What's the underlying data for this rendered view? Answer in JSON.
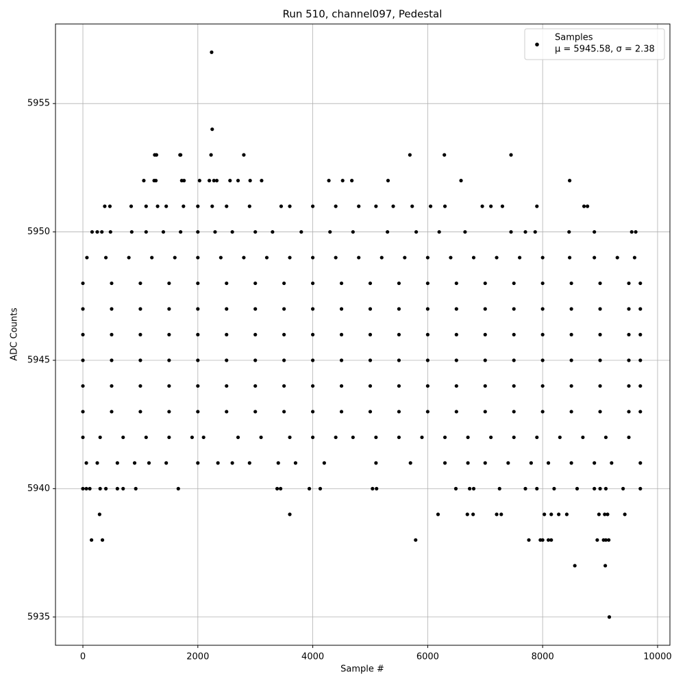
{
  "chart_data": {
    "type": "scatter",
    "title": "Run 510, channel097, Pedestal",
    "xlabel": "Sample #",
    "ylabel": "ADC Counts",
    "xlim": [
      -477,
      10215
    ],
    "ylim": [
      5933.9,
      5958.1
    ],
    "xticks": [
      0,
      2000,
      4000,
      6000,
      8000,
      10000
    ],
    "yticks": [
      5935,
      5940,
      5945,
      5950,
      5955
    ],
    "grid": true,
    "legend": "upper right",
    "legend_subtitle": "μ = 5945.58, σ = 2.38",
    "series": [
      {
        "name": "Samples",
        "color": "#000000",
        "x": [
          2240,
          2250,
          1250,
          1280,
          1690,
          1700,
          2230,
          2800,
          5690,
          6290,
          7450,
          1060,
          1240,
          1270,
          1720,
          1760,
          2030,
          2200,
          2280,
          2330,
          2560,
          2700,
          2910,
          3110,
          4280,
          4520,
          4680,
          5310,
          6580,
          8470,
          380,
          470,
          840,
          1100,
          1300,
          1450,
          1750,
          2000,
          2250,
          2500,
          2900,
          3450,
          3600,
          4000,
          4400,
          4800,
          5100,
          5400,
          5730,
          6050,
          6300,
          6950,
          7100,
          7300,
          7900,
          8720,
          8780,
          160,
          250,
          330,
          480,
          850,
          1100,
          1400,
          1700,
          2000,
          2300,
          2600,
          3000,
          3300,
          3800,
          4300,
          4700,
          5300,
          5800,
          6200,
          6650,
          7450,
          7700,
          7870,
          8460,
          8900,
          9550,
          9620,
          70,
          400,
          800,
          1200,
          1600,
          2000,
          2400,
          2800,
          3200,
          3600,
          4000,
          4400,
          4800,
          5200,
          5600,
          6000,
          6400,
          6800,
          7200,
          7600,
          8000,
          8470,
          8900,
          9300,
          9600,
          0,
          500,
          1000,
          1500,
          2000,
          2500,
          3000,
          3500,
          4000,
          4500,
          5000,
          5500,
          6000,
          6500,
          7000,
          7500,
          8000,
          8500,
          9000,
          9500,
          9700,
          0,
          500,
          1000,
          1500,
          2000,
          2500,
          3000,
          3500,
          4000,
          4500,
          5000,
          5500,
          6000,
          6500,
          7000,
          7500,
          8000,
          8500,
          9000,
          9500,
          9700,
          0,
          500,
          1000,
          1500,
          2000,
          2500,
          3000,
          3500,
          4000,
          4500,
          5000,
          5500,
          6000,
          6500,
          7000,
          7500,
          8000,
          8500,
          9000,
          9500,
          9700,
          0,
          500,
          1000,
          1500,
          2000,
          2500,
          3000,
          3500,
          4000,
          4500,
          5000,
          5500,
          6000,
          6500,
          7000,
          7500,
          8000,
          8500,
          9000,
          9500,
          9700,
          0,
          500,
          1000,
          1500,
          2000,
          2500,
          3000,
          3500,
          4000,
          4500,
          5000,
          5500,
          6000,
          6500,
          7000,
          7500,
          8000,
          8500,
          9000,
          9500,
          9700,
          0,
          500,
          1000,
          1500,
          2000,
          2500,
          3000,
          3500,
          4000,
          4500,
          5000,
          5500,
          6000,
          6500,
          7000,
          7500,
          8000,
          8500,
          9000,
          9500,
          9700,
          0,
          300,
          700,
          1100,
          1500,
          1900,
          2100,
          2700,
          3100,
          3600,
          4000,
          4400,
          4700,
          5100,
          5500,
          5900,
          6300,
          6700,
          7100,
          7500,
          7900,
          8300,
          8700,
          9100,
          9500,
          60,
          250,
          600,
          900,
          1150,
          1450,
          2000,
          2350,
          2600,
          2900,
          3400,
          3700,
          4200,
          5100,
          5700,
          6300,
          6700,
          7000,
          7400,
          7800,
          8100,
          8500,
          8900,
          9200,
          9700,
          0,
          60,
          120,
          300,
          400,
          600,
          700,
          920,
          1660,
          3380,
          3440,
          3940,
          4130,
          5040,
          5110,
          6490,
          6730,
          6800,
          7250,
          7700,
          7900,
          8200,
          8600,
          8900,
          9000,
          9100,
          9400,
          9700,
          290,
          3600,
          6180,
          6690,
          6790,
          7200,
          7280,
          8030,
          8150,
          8280,
          8420,
          8980,
          9080,
          9130,
          9430,
          150,
          340,
          5790,
          7760,
          7960,
          8000,
          8100,
          8150,
          8950,
          9060,
          9100,
          9150,
          8560,
          9090,
          9160
        ],
        "values": [
          5957,
          5954,
          5953,
          5953,
          5953,
          5953,
          5953,
          5953,
          5953,
          5953,
          5953,
          5952,
          5952,
          5952,
          5952,
          5952,
          5952,
          5952,
          5952,
          5952,
          5952,
          5952,
          5952,
          5952,
          5952,
          5952,
          5952,
          5952,
          5952,
          5952,
          5951,
          5951,
          5951,
          5951,
          5951,
          5951,
          5951,
          5951,
          5951,
          5951,
          5951,
          5951,
          5951,
          5951,
          5951,
          5951,
          5951,
          5951,
          5951,
          5951,
          5951,
          5951,
          5951,
          5951,
          5951,
          5951,
          5951,
          5950,
          5950,
          5950,
          5950,
          5950,
          5950,
          5950,
          5950,
          5950,
          5950,
          5950,
          5950,
          5950,
          5950,
          5950,
          5950,
          5950,
          5950,
          5950,
          5950,
          5950,
          5950,
          5950,
          5950,
          5950,
          5950,
          5950,
          5949,
          5949,
          5949,
          5949,
          5949,
          5949,
          5949,
          5949,
          5949,
          5949,
          5949,
          5949,
          5949,
          5949,
          5949,
          5949,
          5949,
          5949,
          5949,
          5949,
          5949,
          5949,
          5949,
          5949,
          5949,
          5948,
          5948,
          5948,
          5948,
          5948,
          5948,
          5948,
          5948,
          5948,
          5948,
          5948,
          5948,
          5948,
          5948,
          5948,
          5948,
          5948,
          5948,
          5948,
          5948,
          5948,
          5947,
          5947,
          5947,
          5947,
          5947,
          5947,
          5947,
          5947,
          5947,
          5947,
          5947,
          5947,
          5947,
          5947,
          5947,
          5947,
          5947,
          5947,
          5947,
          5947,
          5947,
          5946,
          5946,
          5946,
          5946,
          5946,
          5946,
          5946,
          5946,
          5946,
          5946,
          5946,
          5946,
          5946,
          5946,
          5946,
          5946,
          5946,
          5946,
          5946,
          5946,
          5946,
          5945,
          5945,
          5945,
          5945,
          5945,
          5945,
          5945,
          5945,
          5945,
          5945,
          5945,
          5945,
          5945,
          5945,
          5945,
          5945,
          5945,
          5945,
          5945,
          5945,
          5945,
          5944,
          5944,
          5944,
          5944,
          5944,
          5944,
          5944,
          5944,
          5944,
          5944,
          5944,
          5944,
          5944,
          5944,
          5944,
          5944,
          5944,
          5944,
          5944,
          5944,
          5944,
          5943,
          5943,
          5943,
          5943,
          5943,
          5943,
          5943,
          5943,
          5943,
          5943,
          5943,
          5943,
          5943,
          5943,
          5943,
          5943,
          5943,
          5943,
          5943,
          5943,
          5943,
          5942,
          5942,
          5942,
          5942,
          5942,
          5942,
          5942,
          5942,
          5942,
          5942,
          5942,
          5942,
          5942,
          5942,
          5942,
          5942,
          5942,
          5942,
          5942,
          5942,
          5942,
          5942,
          5942,
          5942,
          5942,
          5941,
          5941,
          5941,
          5941,
          5941,
          5941,
          5941,
          5941,
          5941,
          5941,
          5941,
          5941,
          5941,
          5941,
          5941,
          5941,
          5941,
          5941,
          5941,
          5941,
          5941,
          5941,
          5941,
          5941,
          5941,
          5940,
          5940,
          5940,
          5940,
          5940,
          5940,
          5940,
          5940,
          5940,
          5940,
          5940,
          5940,
          5940,
          5940,
          5940,
          5940,
          5940,
          5940,
          5940,
          5940,
          5940,
          5940,
          5940,
          5940,
          5940,
          5940,
          5940,
          5940,
          5939,
          5939,
          5939,
          5939,
          5939,
          5939,
          5939,
          5939,
          5939,
          5939,
          5939,
          5939,
          5939,
          5939,
          5939,
          5938,
          5938,
          5938,
          5938,
          5938,
          5938,
          5938,
          5938,
          5938,
          5938,
          5938,
          5938,
          5937,
          5937,
          5935
        ]
      }
    ]
  }
}
